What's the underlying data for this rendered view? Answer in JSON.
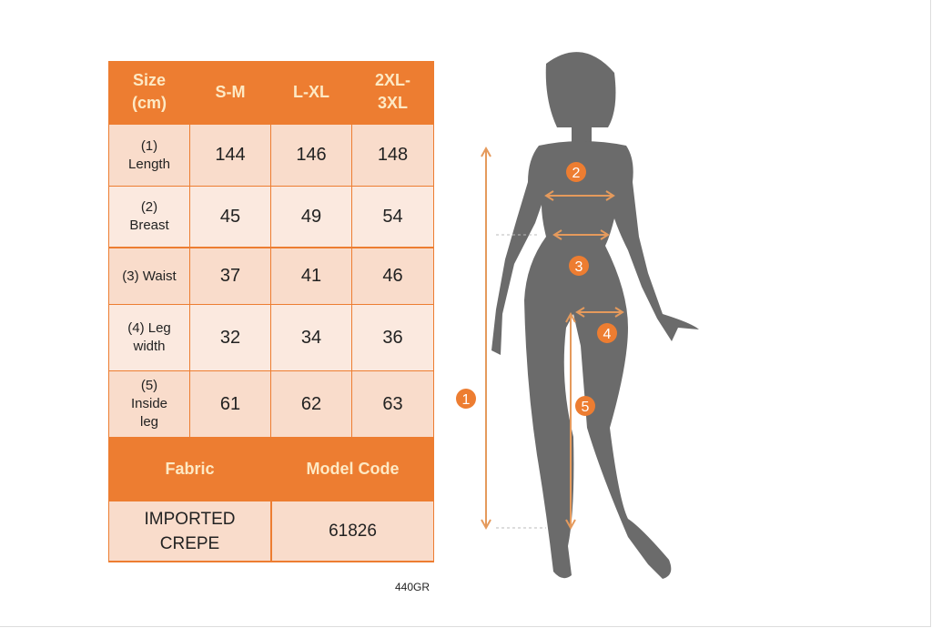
{
  "table": {
    "header": [
      "Size (cm)",
      "S-M",
      "L-XL",
      "2XL-3XL"
    ],
    "header_lines": [
      [
        "Size",
        "(cm)"
      ],
      [
        "S-M"
      ],
      [
        "L-XL"
      ],
      [
        "2XL-",
        "3XL"
      ]
    ],
    "rows": [
      {
        "label": [
          "(1)",
          "Length"
        ],
        "values": [
          "144",
          "146",
          "148"
        ]
      },
      {
        "label": [
          "(2)",
          "Breast"
        ],
        "values": [
          "45",
          "49",
          "54"
        ]
      },
      {
        "label": [
          "(3) Waist"
        ],
        "values": [
          "37",
          "41",
          "46"
        ]
      },
      {
        "label": [
          "(4) Leg",
          "width"
        ],
        "values": [
          "32",
          "34",
          "36"
        ]
      },
      {
        "label": [
          "(5)",
          "Inside",
          "leg"
        ],
        "values": [
          "61",
          "62",
          "63"
        ]
      }
    ],
    "footer_headers": [
      "Fabric",
      "Model Code"
    ],
    "footer_values": [
      [
        "IMPORTED",
        "CREPE"
      ],
      [
        "61826"
      ]
    ]
  },
  "product_code": "440GR",
  "figure": {
    "markers": [
      "1",
      "2",
      "3",
      "4",
      "5"
    ]
  },
  "colors": {
    "accent": "#ed7d31",
    "header_text": "#fde9c4",
    "silhouette": "#6b6b6b",
    "arrow": "#e59a5c"
  }
}
